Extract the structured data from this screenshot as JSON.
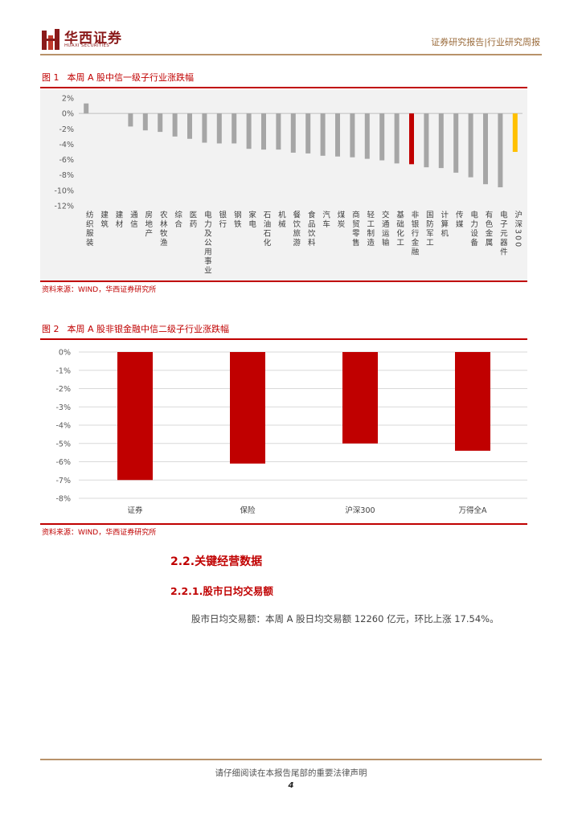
{
  "header": {
    "logo_cn": "华西证券",
    "logo_en": "HUAXI SECURITIES",
    "right_text": "证券研究报告|行业研究周报"
  },
  "figure1": {
    "number": "图 1",
    "title": "本周 A 股中信一级子行业涨跌幅",
    "source": "资料来源：WIND，华西证券研究所"
  },
  "figure2": {
    "number": "图 2",
    "title": "本周 A 股非银金融中信二级子行业涨跌幅",
    "source": "资料来源：WIND，华西证券研究所"
  },
  "chart_data": [
    {
      "type": "bar",
      "categories": [
        "纺织服装",
        "建筑",
        "建材",
        "通信",
        "房地产",
        "农林牧渔",
        "综合",
        "医药",
        "电力及公用事业",
        "银行",
        "钢铁",
        "家电",
        "石油石化",
        "机械",
        "餐饮旅游",
        "食品饮料",
        "汽车",
        "煤炭",
        "商贸零售",
        "轻工制造",
        "交通运输",
        "基础化工",
        "非银行金融",
        "国防军工",
        "计算机",
        "传媒",
        "电力设备",
        "有色金属",
        "电子元器件",
        "沪深300"
      ],
      "values": [
        1.3,
        0.0,
        0.0,
        -1.7,
        -2.2,
        -2.4,
        -3.0,
        -3.3,
        -3.8,
        -3.9,
        -3.9,
        -4.6,
        -4.7,
        -4.7,
        -5.1,
        -5.2,
        -5.5,
        -5.6,
        -5.7,
        -5.9,
        -6.1,
        -6.5,
        -6.6,
        -7.0,
        -7.1,
        -7.7,
        -8.3,
        -9.2,
        -9.6,
        -5.0
      ],
      "colors": [
        "#a6a6a6",
        "#a6a6a6",
        "#a6a6a6",
        "#a6a6a6",
        "#a6a6a6",
        "#a6a6a6",
        "#a6a6a6",
        "#a6a6a6",
        "#a6a6a6",
        "#a6a6a6",
        "#a6a6a6",
        "#a6a6a6",
        "#a6a6a6",
        "#a6a6a6",
        "#a6a6a6",
        "#a6a6a6",
        "#a6a6a6",
        "#a6a6a6",
        "#a6a6a6",
        "#a6a6a6",
        "#a6a6a6",
        "#a6a6a6",
        "#c00000",
        "#a6a6a6",
        "#a6a6a6",
        "#a6a6a6",
        "#a6a6a6",
        "#a6a6a6",
        "#a6a6a6",
        "#ffc000"
      ],
      "yticks": [
        "2%",
        "0%",
        "-2%",
        "-4%",
        "-6%",
        "-8%",
        "-10%",
        "-12%"
      ],
      "ylim": [
        -12,
        2
      ],
      "title": "",
      "xlabel": "",
      "ylabel": ""
    },
    {
      "type": "bar",
      "categories": [
        "证券",
        "保险",
        "沪深300",
        "万得全A"
      ],
      "values": [
        -7.0,
        -6.1,
        -5.0,
        -5.4
      ],
      "color": "#c00000",
      "yticks": [
        "0%",
        "-1%",
        "-2%",
        "-3%",
        "-4%",
        "-5%",
        "-6%",
        "-7%",
        "-8%"
      ],
      "ylim": [
        -8,
        0
      ],
      "grid": true,
      "title": "",
      "xlabel": "",
      "ylabel": ""
    }
  ],
  "section": {
    "h2": "2.2.关键经营数据",
    "h3": "2.2.1.股市日均交易额",
    "body": "股市日均交易额：本周 A 股日均交易额 12260 亿元，环比上涨 17.54%。"
  },
  "footer": {
    "notice": "请仔细阅读在本报告尾部的重要法律声明",
    "page": "4"
  }
}
